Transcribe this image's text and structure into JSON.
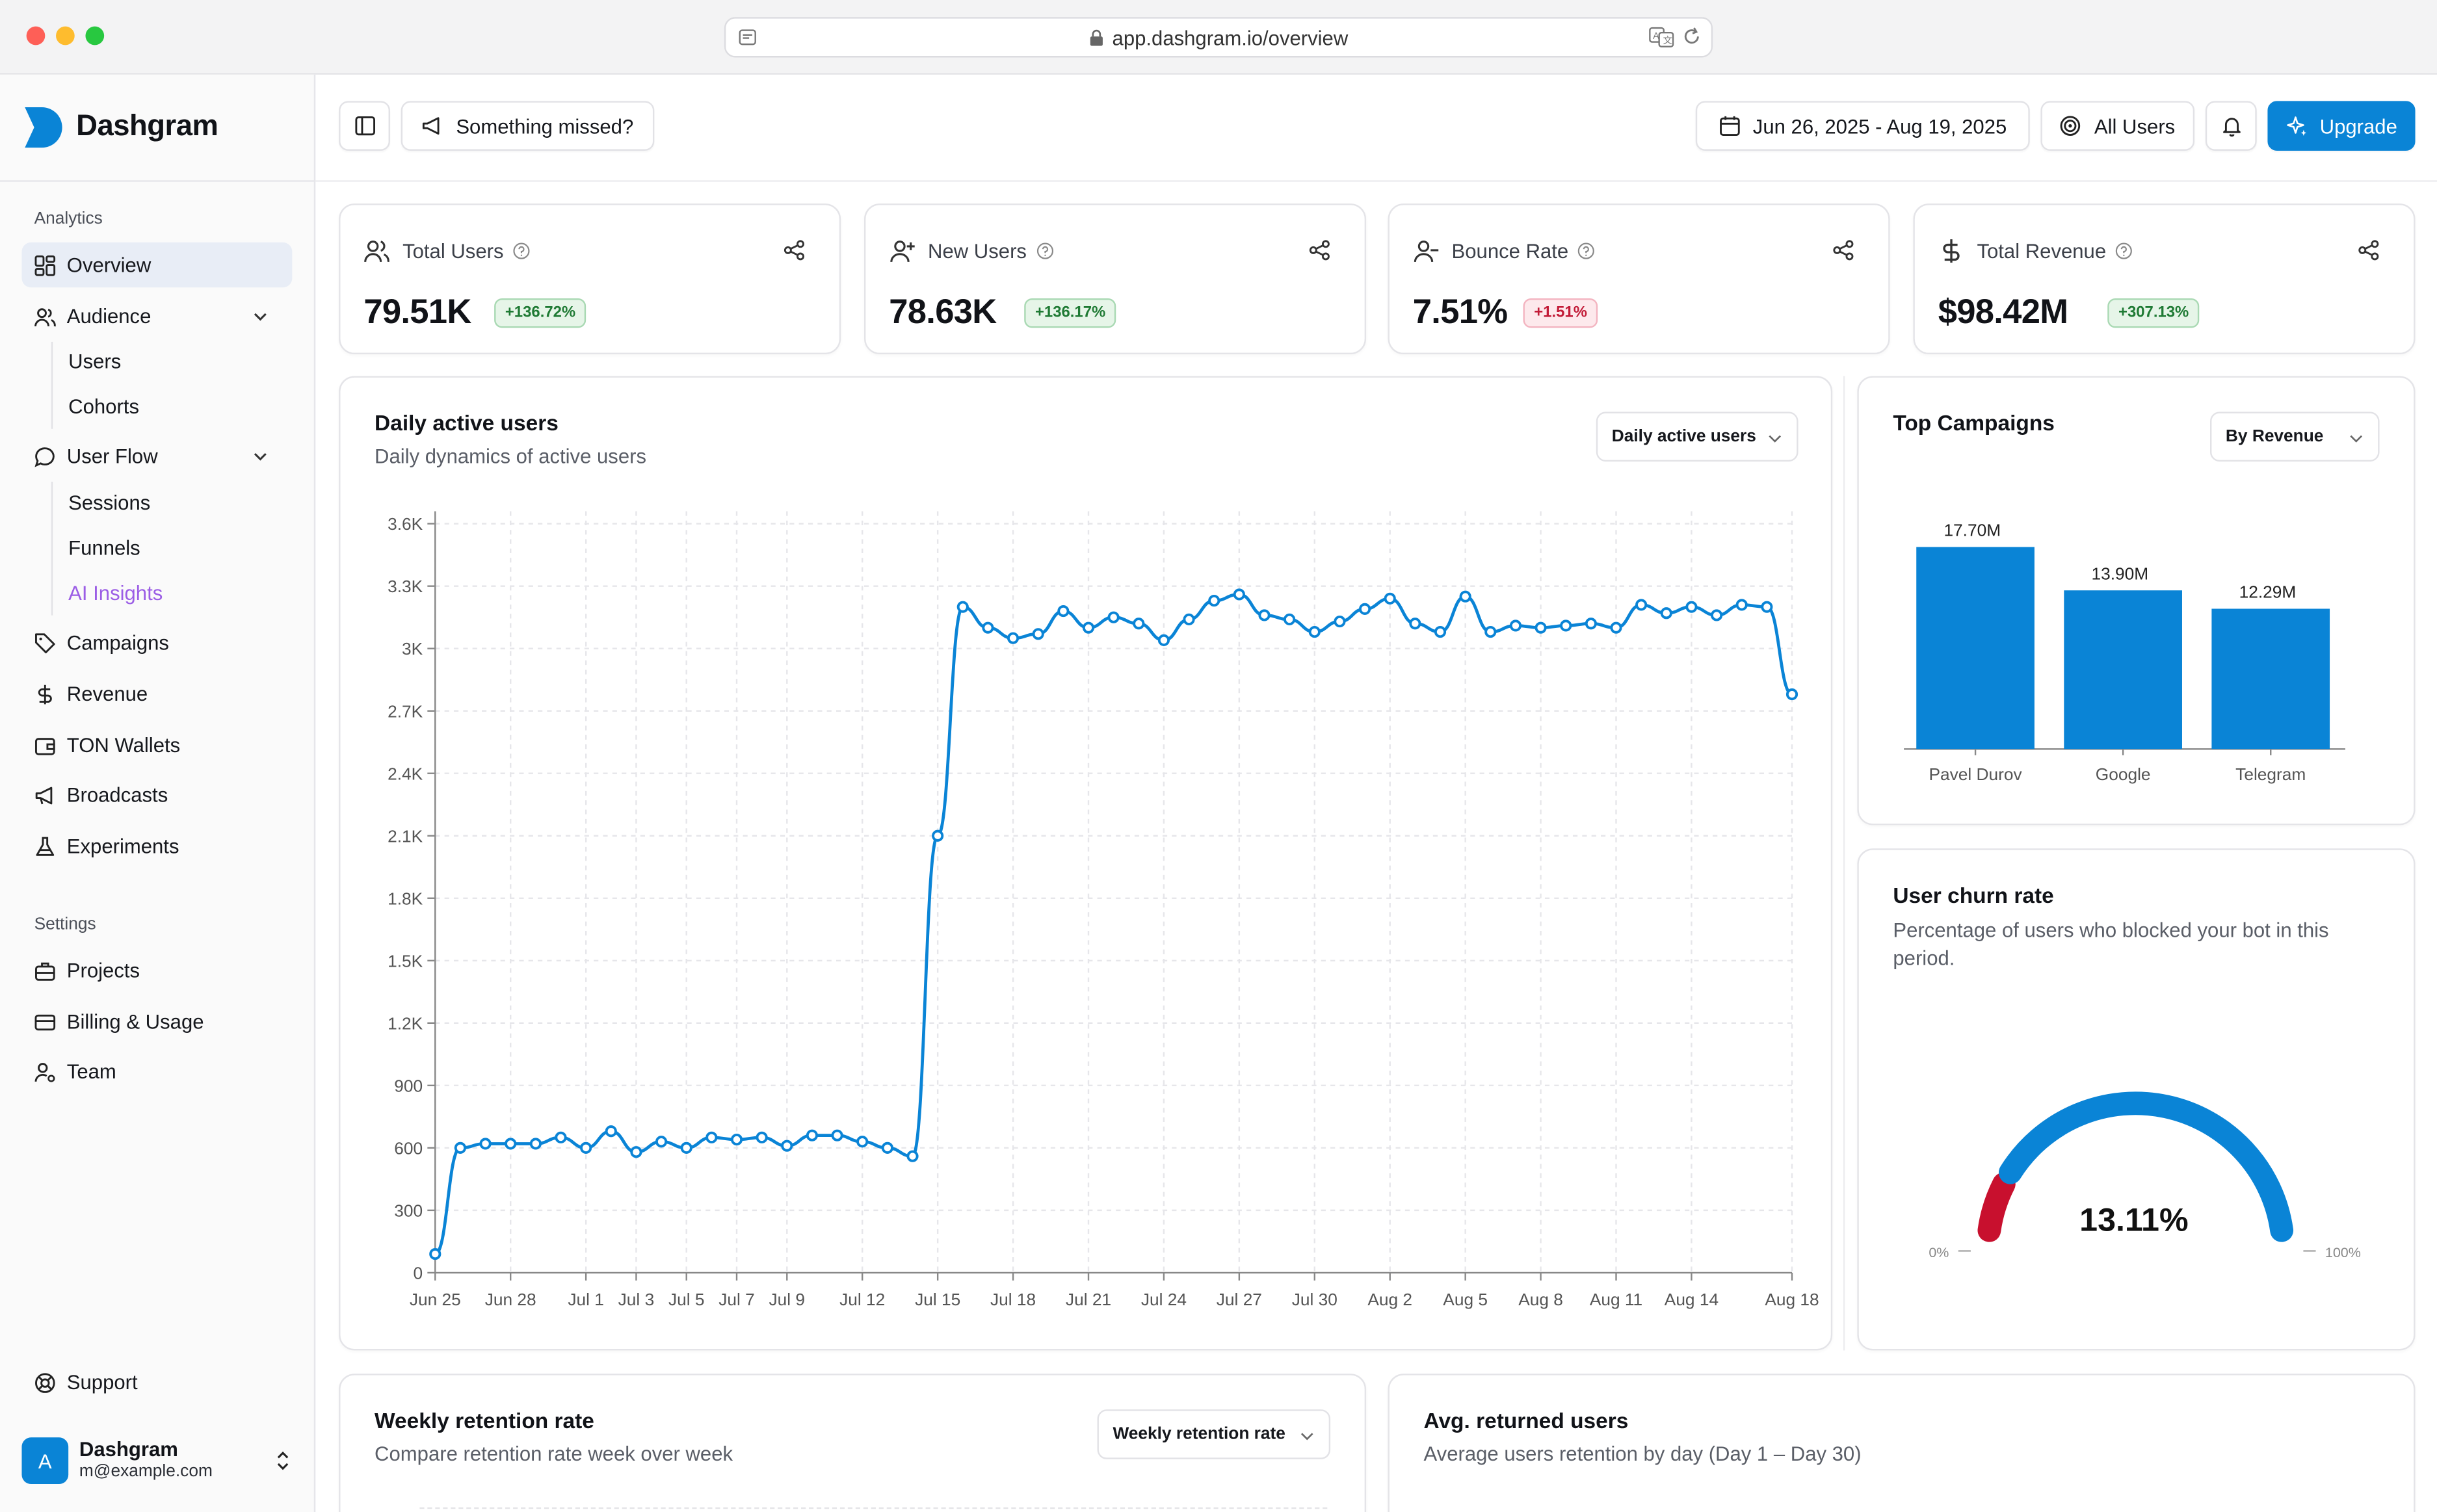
{
  "browser": {
    "url": "app.dashgram.io/overview"
  },
  "brand": {
    "name": "Dashgram"
  },
  "sidebar": {
    "analytics_label": "Analytics",
    "settings_label": "Settings",
    "items": [
      {
        "label": "Overview",
        "icon": "grid-icon",
        "active": true
      },
      {
        "label": "Audience",
        "icon": "users-icon"
      },
      {
        "label": "Users"
      },
      {
        "label": "Cohorts"
      },
      {
        "label": "User Flow",
        "icon": "chat-icon"
      },
      {
        "label": "Sessions"
      },
      {
        "label": "Funnels"
      },
      {
        "label": "AI Insights"
      },
      {
        "label": "Campaigns",
        "icon": "tag-icon"
      },
      {
        "label": "Revenue",
        "icon": "dollar-icon"
      },
      {
        "label": "TON Wallets",
        "icon": "wallet-icon"
      },
      {
        "label": "Broadcasts",
        "icon": "megaphone-icon"
      },
      {
        "label": "Experiments",
        "icon": "flask-icon"
      }
    ],
    "settings": [
      {
        "label": "Projects",
        "icon": "briefcase-icon"
      },
      {
        "label": "Billing & Usage",
        "icon": "credit-card-icon"
      },
      {
        "label": "Team",
        "icon": "user-cog-icon"
      }
    ],
    "support": "Support",
    "user": {
      "initial": "A",
      "name": "Dashgram",
      "email": "m@example.com"
    }
  },
  "header": {
    "feedback": "Something missed?",
    "date_range": "Jun 26, 2025 - Aug 19, 2025",
    "segment": "All Users",
    "upgrade": "Upgrade"
  },
  "kpis": [
    {
      "title": "Total Users",
      "value": "79.51K",
      "delta": "+136.72%",
      "trend": "up"
    },
    {
      "title": "New Users",
      "value": "78.63K",
      "delta": "+136.17%",
      "trend": "up"
    },
    {
      "title": "Bounce Rate",
      "value": "7.51%",
      "delta": "+1.51%",
      "trend": "down"
    },
    {
      "title": "Total Revenue",
      "value": "$98.42M",
      "delta": "+307.13%",
      "trend": "up"
    }
  ],
  "dau": {
    "title": "Daily active users",
    "subtitle": "Daily dynamics of active users",
    "select": "Daily active users"
  },
  "campaigns": {
    "title": "Top Campaigns",
    "select": "By Revenue"
  },
  "churn": {
    "title": "User churn rate",
    "subtitle": "Percentage of users who blocked your bot in this period.",
    "value": "13.11%",
    "fraction": 0.1311,
    "min_label": "0%",
    "max_label": "100%"
  },
  "retention": {
    "title": "Weekly retention rate",
    "subtitle": "Compare retention rate week over week",
    "select": "Weekly retention rate"
  },
  "returned": {
    "title": "Avg. returned users",
    "subtitle": "Average users retention by day (Day 1 – Day 30)"
  },
  "colors": {
    "accent": "#0a84d6",
    "danger": "#c8102e",
    "grid": "#e7e7ea"
  },
  "chart_data": [
    {
      "type": "line",
      "title": "Daily active users",
      "x_ticks": [
        "Jun 25",
        "Jun 28",
        "Jul 1",
        "Jul 3",
        "Jul 5",
        "Jul 7",
        "Jul 9",
        "Jul 12",
        "Jul 15",
        "Jul 18",
        "Jul 21",
        "Jul 24",
        "Jul 27",
        "Jul 30",
        "Aug 2",
        "Aug 5",
        "Aug 8",
        "Aug 11",
        "Aug 14",
        "Aug 18"
      ],
      "y_ticks": [
        "0",
        "300",
        "600",
        "900",
        "1.2K",
        "1.5K",
        "1.8K",
        "2.1K",
        "2.4K",
        "2.7K",
        "3K",
        "3.3K",
        "3.6K"
      ],
      "ylim": [
        0,
        3600
      ],
      "x_start": "Jun 25",
      "values": [
        90,
        600,
        620,
        620,
        620,
        650,
        600,
        680,
        580,
        630,
        600,
        650,
        640,
        650,
        610,
        660,
        660,
        630,
        600,
        560,
        2100,
        3200,
        3100,
        3050,
        3070,
        3180,
        3100,
        3150,
        3120,
        3040,
        3140,
        3230,
        3260,
        3160,
        3140,
        3080,
        3130,
        3190,
        3240,
        3120,
        3080,
        3250,
        3080,
        3110,
        3100,
        3110,
        3120,
        3100,
        3210,
        3170,
        3200,
        3160,
        3210,
        3200,
        2780
      ]
    },
    {
      "type": "bar",
      "title": "Top Campaigns",
      "categories": [
        "Pavel Durov",
        "Google",
        "Telegram"
      ],
      "values": [
        17.7,
        13.9,
        12.29
      ],
      "value_labels": [
        "17.70M",
        "13.90M",
        "12.29M"
      ],
      "ylim": [
        0,
        17.7
      ]
    }
  ]
}
